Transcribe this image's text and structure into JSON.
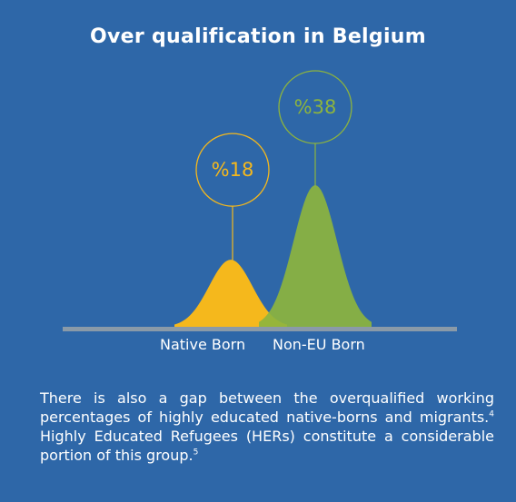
{
  "title": "Over qualification in Belgium",
  "chart_data": {
    "type": "area",
    "title": "Over qualification in Belgium",
    "categories": [
      "Native Born",
      "Non-EU Born"
    ],
    "values": [
      18,
      38
    ],
    "value_labels": [
      "%18",
      "%38"
    ],
    "ylim": [
      0,
      40
    ],
    "grid": false,
    "legend": "none"
  },
  "colors": {
    "background": "#2e67a8",
    "native_born": "#f5b81c",
    "non_eu_born": "#8db43e",
    "axis": "#8a9aa8"
  },
  "description": {
    "part1": "There is also a gap between the overqualified working percentages of highly educated native-borns and migrants.",
    "ref1": "4",
    "part2": " Highly Educated Refugees (HERs) constitute a considerable portion of this group.",
    "ref2": "5"
  }
}
